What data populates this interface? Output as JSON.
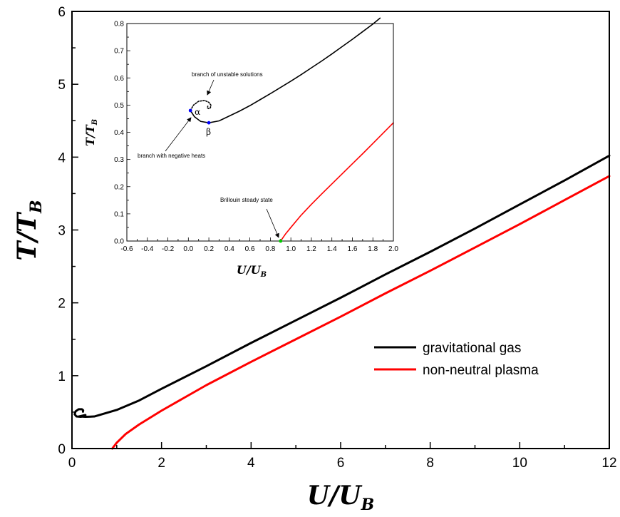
{
  "chart_data": [
    {
      "type": "line",
      "title": "",
      "xlabel": {
        "main": "U",
        "slash": "/",
        "sub_main": "U",
        "sub": "B"
      },
      "ylabel": {
        "main": "T",
        "slash": "/",
        "sub_main": "T",
        "sub": "B"
      },
      "xlim": [
        0,
        12
      ],
      "ylim": [
        0,
        6
      ],
      "xticks": [
        "0",
        "2",
        "4",
        "6",
        "8",
        "10",
        "12"
      ],
      "yticks": [
        "0",
        "1",
        "2",
        "3",
        "4",
        "5",
        "6"
      ],
      "legend_position": "lower-right",
      "series": [
        {
          "name": "gravitational gas",
          "color": "#000000",
          "x": [
            0.245,
            0.25,
            0.22,
            0.15,
            0.08,
            0.06,
            0.1,
            0.2,
            0.3,
            0.15,
            0.3,
            0.5,
            1.0,
            1.5,
            2.0,
            3.0,
            4.0,
            5.0,
            6.0,
            7.0,
            8.0,
            9.0,
            10.0,
            11.0,
            12.0
          ],
          "y": [
            0.505,
            0.525,
            0.54,
            0.54,
            0.51,
            0.47,
            0.44,
            0.435,
            0.46,
            0.44,
            0.435,
            0.44,
            0.53,
            0.66,
            0.82,
            1.13,
            1.45,
            1.76,
            2.07,
            2.39,
            2.7,
            3.02,
            3.35,
            3.68,
            4.02
          ]
        },
        {
          "name": "non-neutral plasma",
          "color": "#ff0000",
          "x": [
            0.9,
            1.0,
            1.2,
            1.5,
            2.0,
            3.0,
            4.0,
            5.0,
            6.0,
            7.0,
            8.0,
            9.0,
            10.0,
            11.0,
            12.0
          ],
          "y": [
            0.0,
            0.08,
            0.2,
            0.33,
            0.52,
            0.87,
            1.19,
            1.5,
            1.81,
            2.13,
            2.44,
            2.76,
            3.08,
            3.41,
            3.74
          ]
        }
      ]
    },
    {
      "type": "line",
      "title": "",
      "xlabel": {
        "main": "U",
        "slash": "/",
        "sub_main": "U",
        "sub": "B"
      },
      "ylabel": {
        "main": "T",
        "slash": "/",
        "sub_main": "T",
        "sub": "B"
      },
      "xlim": [
        -0.6,
        2.0
      ],
      "ylim": [
        0,
        0.8
      ],
      "xticks": [
        "-0.6",
        "-0.4",
        "-0.2",
        "0.0",
        "0.2",
        "0.4",
        "0.6",
        "0.8",
        "1.0",
        "1.2",
        "1.4",
        "1.6",
        "1.8",
        "2.0"
      ],
      "yticks": [
        "0.0",
        "0.1",
        "0.2",
        "0.3",
        "0.4",
        "0.5",
        "0.6",
        "0.7",
        "0.8"
      ],
      "series": [
        {
          "color": "#000000",
          "x": [
            0.02,
            0.06,
            0.12,
            0.2,
            0.3,
            0.4,
            0.5,
            0.6,
            0.7,
            0.8,
            0.9,
            1.0,
            1.1,
            1.2,
            1.3,
            1.4,
            1.5,
            1.6,
            1.7,
            1.8,
            1.87
          ],
          "y": [
            0.48,
            0.457,
            0.44,
            0.435,
            0.442,
            0.46,
            0.478,
            0.498,
            0.52,
            0.542,
            0.565,
            0.588,
            0.612,
            0.637,
            0.662,
            0.688,
            0.715,
            0.742,
            0.77,
            0.798,
            0.82
          ]
        },
        {
          "color": "#000000",
          "dashed": true,
          "x": [
            0.02,
            0.05,
            0.1,
            0.16,
            0.2,
            0.22,
            0.215,
            0.2,
            0.185,
            0.19
          ],
          "y": [
            0.48,
            0.5,
            0.514,
            0.517,
            0.51,
            0.5,
            0.49,
            0.487,
            0.49,
            0.496
          ]
        },
        {
          "color": "#ff0000",
          "x": [
            0.9,
            0.95,
            1.0,
            1.1,
            1.2,
            1.3,
            1.4,
            1.5,
            1.6,
            1.7,
            1.8,
            1.9,
            2.0
          ],
          "y": [
            0.0,
            0.027,
            0.05,
            0.095,
            0.135,
            0.173,
            0.21,
            0.247,
            0.284,
            0.321,
            0.359,
            0.397,
            0.435
          ]
        }
      ],
      "points": [
        {
          "x": 0.02,
          "y": 0.48,
          "color": "#0000ff",
          "label": "α"
        },
        {
          "x": 0.2,
          "y": 0.435,
          "color": "#0000ff",
          "label": "β"
        },
        {
          "x": 0.9,
          "y": 0.0,
          "color": "#00cc00",
          "label": ""
        }
      ],
      "annotations": [
        {
          "text": "branch of unstable solutions"
        },
        {
          "text": "branch with negative heats"
        },
        {
          "text": "Brillouin steady state"
        }
      ]
    }
  ]
}
